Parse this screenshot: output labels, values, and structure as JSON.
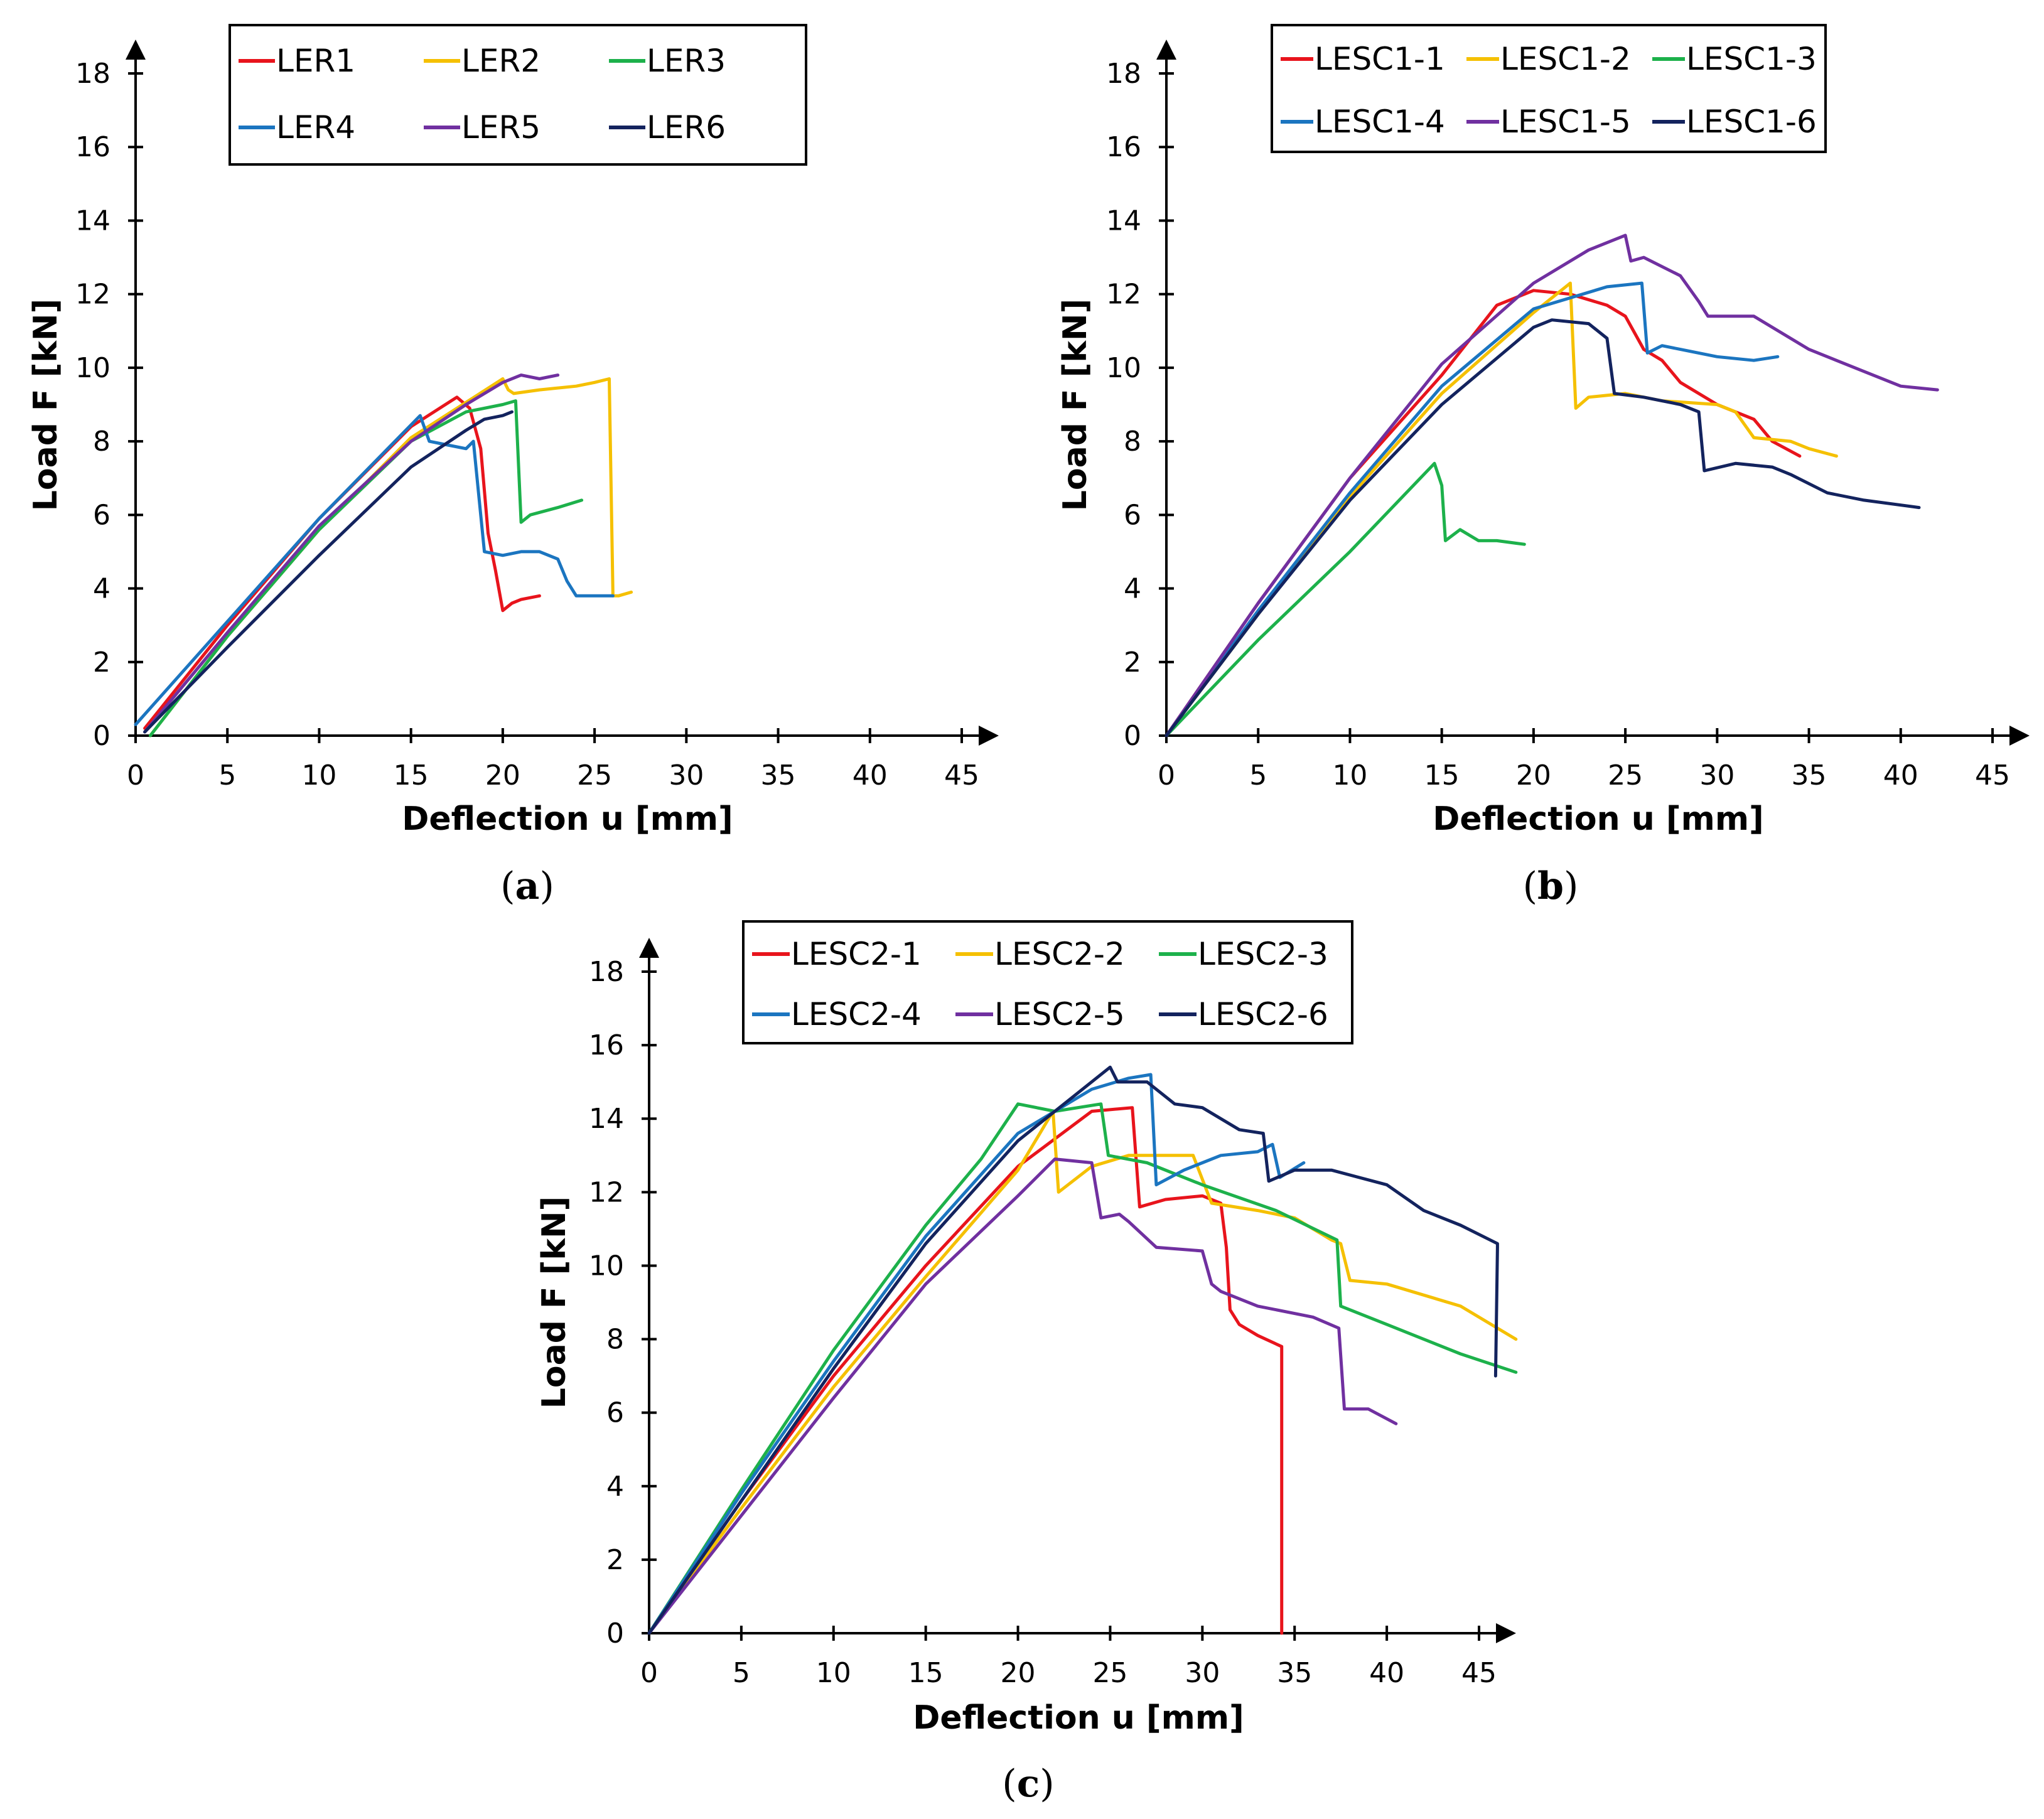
{
  "chart_data": [
    {
      "type": "line",
      "panel_label": "a",
      "xlabel": "Deflection u [mm]",
      "ylabel": "Load F [kN]",
      "xlim": [
        0,
        45
      ],
      "ylim": [
        0,
        18
      ],
      "xticks": [
        "0",
        "5",
        "10",
        "15",
        "20",
        "25",
        "30",
        "35",
        "40",
        "45"
      ],
      "yticks": [
        "0",
        "2",
        "4",
        "6",
        "8",
        "10",
        "12",
        "14",
        "16",
        "18"
      ],
      "legend_position": "top-center",
      "legend_columns": 3,
      "series": [
        {
          "name": "LER1",
          "color": "#e8141c",
          "x": [
            0.5,
            5,
            10,
            15,
            17.5,
            18.2,
            18.8,
            19.2,
            19.6,
            20,
            20.5,
            21,
            22
          ],
          "y": [
            0.2,
            3.0,
            5.9,
            8.4,
            9.2,
            8.9,
            7.8,
            5.5,
            4.5,
            3.4,
            3.6,
            3.7,
            3.8
          ]
        },
        {
          "name": "LER2",
          "color": "#f5c000",
          "x": [
            0.8,
            5,
            10,
            15,
            20,
            20.3,
            20.6,
            22,
            24,
            25,
            25.8,
            26,
            26.3,
            27
          ],
          "y": [
            0,
            2.7,
            5.6,
            8.1,
            9.7,
            9.4,
            9.3,
            9.4,
            9.5,
            9.6,
            9.7,
            3.8,
            3.8,
            3.9
          ]
        },
        {
          "name": "LER3",
          "color": "#1db14b",
          "x": [
            0.8,
            5,
            10,
            15,
            18,
            20,
            20.7,
            21,
            21.5,
            23,
            24.3
          ],
          "y": [
            0,
            2.7,
            5.6,
            8.0,
            8.8,
            9.0,
            9.1,
            5.8,
            6.0,
            6.2,
            6.4
          ]
        },
        {
          "name": "LER4",
          "color": "#1b75c0",
          "x": [
            0,
            5,
            10,
            15.5,
            16,
            17,
            18,
            18.4,
            19,
            20,
            21,
            22,
            23,
            23.5,
            24,
            26
          ],
          "y": [
            0.3,
            3.1,
            5.9,
            8.7,
            8.0,
            7.9,
            7.8,
            8.0,
            5.0,
            4.9,
            5.0,
            5.0,
            4.8,
            4.2,
            3.8,
            3.8
          ]
        },
        {
          "name": "LER5",
          "color": "#7030a0",
          "x": [
            0.5,
            5,
            10,
            15,
            18,
            20,
            21,
            22,
            23
          ],
          "y": [
            0.1,
            2.8,
            5.7,
            8.0,
            9.0,
            9.6,
            9.8,
            9.7,
            9.8
          ]
        },
        {
          "name": "LER6",
          "color": "#13235e",
          "x": [
            0.5,
            5,
            10,
            15,
            18,
            19,
            20,
            20.5
          ],
          "y": [
            0.1,
            2.4,
            4.9,
            7.3,
            8.3,
            8.6,
            8.7,
            8.8
          ]
        }
      ]
    },
    {
      "type": "line",
      "panel_label": "b",
      "xlabel": "Deflection u [mm]",
      "ylabel": "Load F [kN]",
      "xlim": [
        0,
        45
      ],
      "ylim": [
        0,
        18
      ],
      "xticks": [
        "0",
        "5",
        "10",
        "15",
        "20",
        "25",
        "30",
        "35",
        "40",
        "45"
      ],
      "yticks": [
        "0",
        "2",
        "4",
        "6",
        "8",
        "10",
        "12",
        "14",
        "16",
        "18"
      ],
      "legend_position": "top-right",
      "legend_columns": 3,
      "series": [
        {
          "name": "LESC1-1",
          "color": "#e8141c",
          "x": [
            0,
            5,
            10,
            15,
            18,
            20,
            22,
            24,
            25,
            26,
            27,
            28,
            30,
            32,
            33,
            34.5
          ],
          "y": [
            0,
            3.6,
            7.0,
            9.8,
            11.7,
            12.1,
            12.0,
            11.7,
            11.4,
            10.5,
            10.2,
            9.6,
            9.0,
            8.6,
            8.0,
            7.6
          ]
        },
        {
          "name": "LESC1-2",
          "color": "#f5c000",
          "x": [
            0,
            5,
            10,
            15,
            20,
            22,
            22.3,
            23,
            25,
            27,
            30,
            31,
            32,
            34,
            35,
            36.5
          ],
          "y": [
            0,
            3.3,
            6.5,
            9.3,
            11.5,
            12.3,
            8.9,
            9.2,
            9.3,
            9.1,
            9.0,
            8.8,
            8.1,
            8.0,
            7.8,
            7.6
          ]
        },
        {
          "name": "LESC1-3",
          "color": "#1db14b",
          "x": [
            0,
            5,
            10,
            14.6,
            15,
            15.2,
            16,
            17,
            18,
            19.5
          ],
          "y": [
            0,
            2.6,
            5.0,
            7.4,
            6.8,
            5.3,
            5.6,
            5.3,
            5.3,
            5.2
          ]
        },
        {
          "name": "LESC1-4",
          "color": "#1b75c0",
          "x": [
            0,
            5,
            10,
            15,
            20,
            24,
            25.9,
            26.2,
            27,
            28,
            30,
            32,
            33.3
          ],
          "y": [
            0,
            3.4,
            6.6,
            9.5,
            11.6,
            12.2,
            12.3,
            10.4,
            10.6,
            10.5,
            10.3,
            10.2,
            10.3
          ]
        },
        {
          "name": "LESC1-5",
          "color": "#7030a0",
          "x": [
            0,
            5,
            10,
            15,
            20,
            23,
            25,
            25.3,
            26,
            28,
            29,
            29.5,
            32,
            35,
            38,
            40,
            42
          ],
          "y": [
            0,
            3.6,
            7.0,
            10.1,
            12.3,
            13.2,
            13.6,
            12.9,
            13.0,
            12.5,
            11.8,
            11.4,
            11.4,
            10.5,
            9.9,
            9.5,
            9.4
          ]
        },
        {
          "name": "LESC1-6",
          "color": "#13235e",
          "x": [
            0,
            5,
            10,
            15,
            20,
            21,
            23,
            24,
            24.4,
            26,
            28,
            29,
            29.3,
            31,
            33,
            34,
            36,
            38,
            41
          ],
          "y": [
            0,
            3.3,
            6.4,
            9.0,
            11.1,
            11.3,
            11.2,
            10.8,
            9.3,
            9.2,
            9.0,
            8.8,
            7.2,
            7.4,
            7.3,
            7.1,
            6.6,
            6.4,
            6.2
          ]
        }
      ]
    },
    {
      "type": "line",
      "panel_label": "c",
      "xlabel": "Deflection u [mm]",
      "ylabel": "Load F [kN]",
      "xlim": [
        0,
        45
      ],
      "ylim": [
        0,
        18
      ],
      "xticks": [
        "0",
        "5",
        "10",
        "15",
        "20",
        "25",
        "30",
        "35",
        "40",
        "45"
      ],
      "yticks": [
        "0",
        "2",
        "4",
        "6",
        "8",
        "10",
        "12",
        "14",
        "16",
        "18"
      ],
      "legend_position": "top-center",
      "legend_columns": 3,
      "series": [
        {
          "name": "LESC2-1",
          "color": "#e8141c",
          "x": [
            0,
            5,
            10,
            15,
            20,
            24,
            26.2,
            26.6,
            28,
            30,
            31,
            31.3,
            31.5,
            32,
            33,
            34.3,
            34.3
          ],
          "y": [
            0,
            3.6,
            7.0,
            10.0,
            12.7,
            14.2,
            14.3,
            11.6,
            11.8,
            11.9,
            11.7,
            10.5,
            8.8,
            8.4,
            8.1,
            7.8,
            0
          ]
        },
        {
          "name": "LESC2-2",
          "color": "#f5c000",
          "x": [
            0,
            5,
            10,
            15,
            20,
            21.9,
            22.2,
            24,
            26,
            28,
            29.5,
            30.5,
            33,
            35,
            37,
            37.5,
            38,
            40,
            44,
            47
          ],
          "y": [
            0,
            3.4,
            6.7,
            9.7,
            12.6,
            14.2,
            12.0,
            12.7,
            13.0,
            13.0,
            13.0,
            11.7,
            11.5,
            11.3,
            10.7,
            10.6,
            9.6,
            9.5,
            8.9,
            8.0
          ]
        },
        {
          "name": "LESC2-3",
          "color": "#1db14b",
          "x": [
            0,
            5,
            10,
            15,
            18,
            20,
            22,
            24.5,
            24.9,
            27,
            30,
            34,
            37.3,
            37.5,
            40,
            42,
            44,
            47
          ],
          "y": [
            0,
            3.9,
            7.7,
            11.1,
            12.9,
            14.4,
            14.2,
            14.4,
            13.0,
            12.8,
            12.2,
            11.5,
            10.7,
            8.9,
            8.4,
            8.0,
            7.6,
            7.1
          ]
        },
        {
          "name": "LESC2-4",
          "color": "#1b75c0",
          "x": [
            0,
            5,
            10,
            15,
            20,
            24,
            26,
            27.2,
            27.5,
            29,
            31,
            33,
            33.8,
            34.2,
            35.5
          ],
          "y": [
            0,
            3.8,
            7.4,
            10.8,
            13.6,
            14.8,
            15.1,
            15.2,
            12.2,
            12.6,
            13.0,
            13.1,
            13.3,
            12.4,
            12.8
          ]
        },
        {
          "name": "LESC2-5",
          "color": "#7030a0",
          "x": [
            0,
            5,
            10,
            15,
            20,
            22,
            24,
            24.5,
            25.5,
            26,
            27.5,
            30,
            30.5,
            31,
            33,
            36,
            37.4,
            37.7,
            39,
            40.5
          ],
          "y": [
            0,
            3.2,
            6.4,
            9.5,
            11.9,
            12.9,
            12.8,
            11.3,
            11.4,
            11.2,
            10.5,
            10.4,
            9.5,
            9.3,
            8.9,
            8.6,
            8.3,
            6.1,
            6.1,
            5.7
          ]
        },
        {
          "name": "LESC2-6",
          "color": "#13235e",
          "x": [
            0,
            5,
            10,
            15,
            20,
            25,
            25.4,
            27,
            28.5,
            30,
            32,
            33.3,
            33.6,
            35,
            37,
            40,
            42,
            44,
            46,
            46,
            45.9
          ],
          "y": [
            0,
            3.6,
            7.2,
            10.6,
            13.4,
            15.4,
            15.0,
            15.0,
            14.4,
            14.3,
            13.7,
            13.6,
            12.3,
            12.6,
            12.6,
            12.2,
            11.5,
            11.1,
            10.6,
            10.5,
            7.0
          ]
        }
      ]
    }
  ]
}
